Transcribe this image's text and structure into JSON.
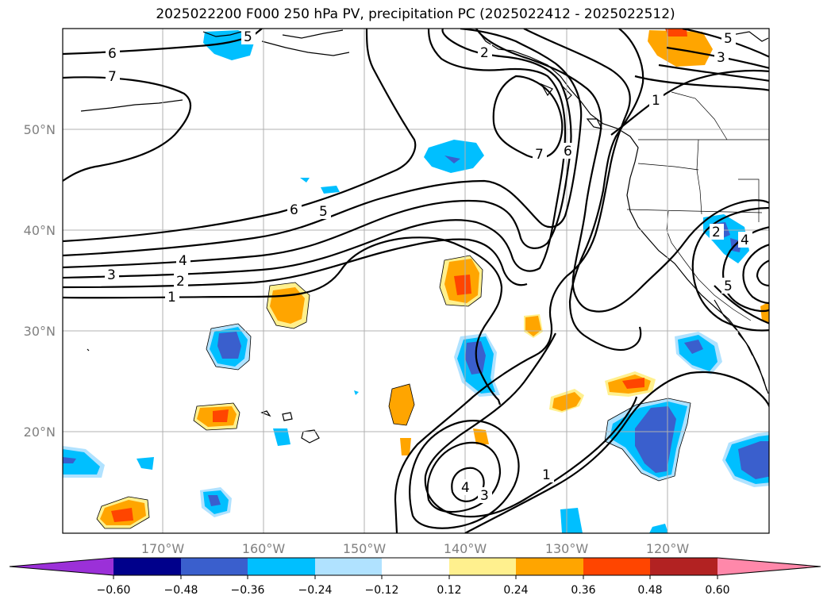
{
  "title": "2025022200 F000 250 hPa PV, precipitation PC (2025022412 - 2025022512)",
  "lat_labels": [
    "50°N",
    "40°N",
    "30°N",
    "20°N"
  ],
  "lon_labels": [
    "170°W",
    "160°W",
    "150°W",
    "140°W",
    "130°W",
    "120°W"
  ],
  "colorbar": {
    "colors": [
      "#9b30d8",
      "#00008b",
      "#3a5fcd",
      "#00bfff",
      "#b0e2ff",
      "#ffffff",
      "#fff08e",
      "#ffa500",
      "#ff4500",
      "#b22222",
      "#ff88aa"
    ],
    "tick_labels": [
      "−0.60",
      "−0.48",
      "−0.36",
      "−0.24",
      "−0.12",
      "0.12",
      "0.24",
      "0.36",
      "0.48",
      "0.60"
    ]
  },
  "contour_labels": [
    "6",
    "7",
    "6",
    "5",
    "4",
    "3",
    "2",
    "1",
    "2",
    "7",
    "6",
    "1",
    "5",
    "3",
    "2",
    "4",
    "5",
    "4",
    "3",
    "1",
    "5"
  ]
}
